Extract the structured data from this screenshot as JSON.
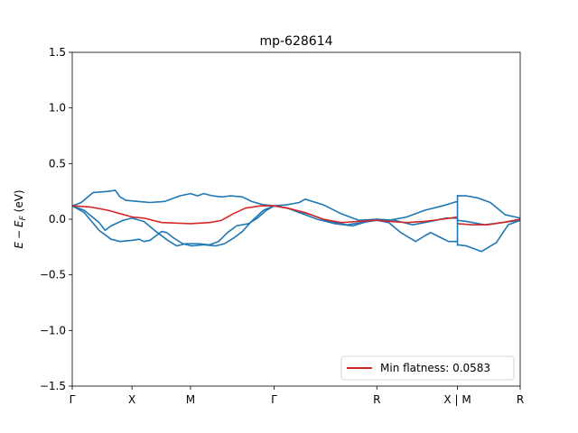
{
  "chart_data": {
    "type": "line",
    "title": "mp-628614",
    "ylabel_parts": {
      "e": "E",
      "minus": "−",
      "ef": "E",
      "sub": "F",
      "unit": " (eV)"
    },
    "xlabel": "",
    "ylim": [
      -1.5,
      1.5
    ],
    "xlim": [
      0,
      7.5
    ],
    "grid": false,
    "yticks": [
      {
        "value": 1.5,
        "label": "1.5"
      },
      {
        "value": 1.0,
        "label": "1.0"
      },
      {
        "value": 0.5,
        "label": "0.5"
      },
      {
        "value": 0.0,
        "label": "0.0"
      },
      {
        "value": -0.5,
        "label": "−0.5"
      },
      {
        "value": -1.0,
        "label": "−1.0"
      },
      {
        "value": -1.5,
        "label": "−1.5"
      }
    ],
    "xticks": [
      {
        "value": 0.0,
        "label": "Γ"
      },
      {
        "value": 1.0,
        "label": "X"
      },
      {
        "value": 1.98,
        "label": "M"
      },
      {
        "value": 3.38,
        "label": "Γ"
      },
      {
        "value": 5.1,
        "label": "R"
      },
      {
        "value": 6.45,
        "label": "X | M"
      },
      {
        "value": 7.5,
        "label": "R"
      }
    ],
    "legend": {
      "placement": "lower-right",
      "entries": [
        {
          "label": "Min flatness: 0.0583",
          "color": "#d62728"
        }
      ]
    },
    "series": [
      {
        "color": "#1f77b4",
        "segments": [
          [
            [
              0,
              0.12
            ],
            [
              0.15,
              0.15
            ],
            [
              0.35,
              0.24
            ],
            [
              0.6,
              0.25
            ],
            [
              0.72,
              0.26
            ],
            [
              0.8,
              0.2
            ],
            [
              0.9,
              0.17
            ],
            [
              1.1,
              0.16
            ],
            [
              1.3,
              0.15
            ],
            [
              1.55,
              0.16
            ],
            [
              1.8,
              0.21
            ],
            [
              1.98,
              0.23
            ],
            [
              2.1,
              0.21
            ],
            [
              2.2,
              0.23
            ],
            [
              2.35,
              0.21
            ],
            [
              2.5,
              0.2
            ],
            [
              2.65,
              0.21
            ],
            [
              2.85,
              0.2
            ],
            [
              3.0,
              0.16
            ],
            [
              3.2,
              0.13
            ],
            [
              3.38,
              0.12
            ],
            [
              3.6,
              0.13
            ],
            [
              3.8,
              0.15
            ],
            [
              3.9,
              0.18
            ],
            [
              4.2,
              0.13
            ],
            [
              4.5,
              0.05
            ],
            [
              4.8,
              -0.01
            ],
            [
              5.1,
              0.0
            ],
            [
              5.3,
              -0.01
            ],
            [
              5.6,
              0.02
            ],
            [
              5.9,
              0.08
            ],
            [
              6.2,
              0.12
            ],
            [
              6.45,
              0.16
            ]
          ],
          [
            [
              6.45,
              0.21
            ],
            [
              6.6,
              0.21
            ],
            [
              6.8,
              0.19
            ],
            [
              7.0,
              0.15
            ],
            [
              7.25,
              0.04
            ],
            [
              7.5,
              0.01
            ]
          ]
        ]
      },
      {
        "color": "#1f77b4",
        "segments": [
          [
            [
              0,
              0.12
            ],
            [
              0.2,
              0.08
            ],
            [
              0.45,
              -0.03
            ],
            [
              0.55,
              -0.1
            ],
            [
              0.65,
              -0.06
            ],
            [
              0.85,
              -0.01
            ],
            [
              1.0,
              0.01
            ],
            [
              1.2,
              -0.02
            ],
            [
              1.4,
              -0.11
            ],
            [
              1.6,
              -0.19
            ],
            [
              1.75,
              -0.24
            ],
            [
              1.9,
              -0.22
            ],
            [
              2.1,
              -0.22
            ],
            [
              2.3,
              -0.23
            ],
            [
              2.45,
              -0.2
            ],
            [
              2.6,
              -0.12
            ],
            [
              2.75,
              -0.06
            ],
            [
              2.95,
              -0.04
            ],
            [
              3.1,
              0.01
            ],
            [
              3.25,
              0.08
            ],
            [
              3.38,
              0.12
            ],
            [
              3.6,
              0.1
            ],
            [
              3.8,
              0.07
            ],
            [
              4.0,
              0.04
            ],
            [
              4.3,
              -0.02
            ],
            [
              4.6,
              -0.05
            ],
            [
              4.85,
              -0.03
            ],
            [
              5.1,
              -0.01
            ],
            [
              5.3,
              -0.03
            ],
            [
              5.5,
              -0.12
            ],
            [
              5.75,
              -0.2
            ],
            [
              5.9,
              -0.15
            ],
            [
              6.0,
              -0.12
            ],
            [
              6.15,
              -0.16
            ],
            [
              6.3,
              -0.2
            ],
            [
              6.45,
              -0.2
            ]
          ],
          [
            [
              6.45,
              -0.23
            ],
            [
              6.6,
              -0.24
            ],
            [
              6.85,
              -0.29
            ],
            [
              7.1,
              -0.21
            ],
            [
              7.3,
              -0.05
            ],
            [
              7.5,
              -0.01
            ]
          ]
        ]
      },
      {
        "color": "#1f77b4",
        "segments": [
          [
            [
              0,
              0.12
            ],
            [
              0.2,
              0.06
            ],
            [
              0.45,
              -0.1
            ],
            [
              0.65,
              -0.18
            ],
            [
              0.8,
              -0.2
            ],
            [
              1.0,
              -0.19
            ],
            [
              1.12,
              -0.18
            ],
            [
              1.2,
              -0.2
            ],
            [
              1.3,
              -0.19
            ],
            [
              1.4,
              -0.15
            ],
            [
              1.5,
              -0.11
            ],
            [
              1.58,
              -0.12
            ],
            [
              1.7,
              -0.17
            ],
            [
              1.85,
              -0.22
            ],
            [
              2.0,
              -0.24
            ],
            [
              2.2,
              -0.23
            ],
            [
              2.4,
              -0.24
            ],
            [
              2.55,
              -0.22
            ],
            [
              2.7,
              -0.17
            ],
            [
              2.85,
              -0.11
            ],
            [
              3.0,
              -0.02
            ],
            [
              3.2,
              0.08
            ],
            [
              3.38,
              0.12
            ],
            [
              3.6,
              0.1
            ],
            [
              3.8,
              0.06
            ],
            [
              4.1,
              0.0
            ],
            [
              4.4,
              -0.04
            ],
            [
              4.7,
              -0.06
            ],
            [
              5.0,
              -0.01
            ],
            [
              5.1,
              0.0
            ],
            [
              5.4,
              -0.01
            ],
            [
              5.7,
              -0.05
            ],
            [
              6.0,
              -0.02
            ],
            [
              6.25,
              0.01
            ],
            [
              6.45,
              0.01
            ]
          ],
          [
            [
              6.45,
              -0.01
            ],
            [
              6.6,
              -0.02
            ],
            [
              6.9,
              -0.05
            ],
            [
              7.2,
              -0.03
            ],
            [
              7.5,
              -0.01
            ]
          ]
        ]
      },
      {
        "color": "#d62728",
        "segments": [
          [
            [
              0,
              0.12
            ],
            [
              0.3,
              0.11
            ],
            [
              0.6,
              0.08
            ],
            [
              0.8,
              0.05
            ],
            [
              1.0,
              0.02
            ],
            [
              1.2,
              0.01
            ],
            [
              1.5,
              -0.03
            ],
            [
              1.98,
              -0.04
            ],
            [
              2.3,
              -0.03
            ],
            [
              2.5,
              -0.01
            ],
            [
              2.7,
              0.05
            ],
            [
              2.9,
              0.1
            ],
            [
              3.15,
              0.12
            ],
            [
              3.38,
              0.12
            ],
            [
              3.6,
              0.1
            ],
            [
              3.9,
              0.06
            ],
            [
              4.2,
              0.0
            ],
            [
              4.5,
              -0.03
            ],
            [
              4.8,
              -0.02
            ],
            [
              5.1,
              -0.01
            ],
            [
              5.3,
              -0.02
            ],
            [
              5.6,
              -0.03
            ],
            [
              5.9,
              -0.02
            ],
            [
              6.2,
              0.0
            ],
            [
              6.45,
              0.02
            ]
          ],
          [
            [
              6.45,
              -0.04
            ],
            [
              6.7,
              -0.05
            ],
            [
              6.95,
              -0.05
            ],
            [
              7.2,
              -0.03
            ],
            [
              7.5,
              0.0
            ]
          ]
        ]
      }
    ]
  }
}
